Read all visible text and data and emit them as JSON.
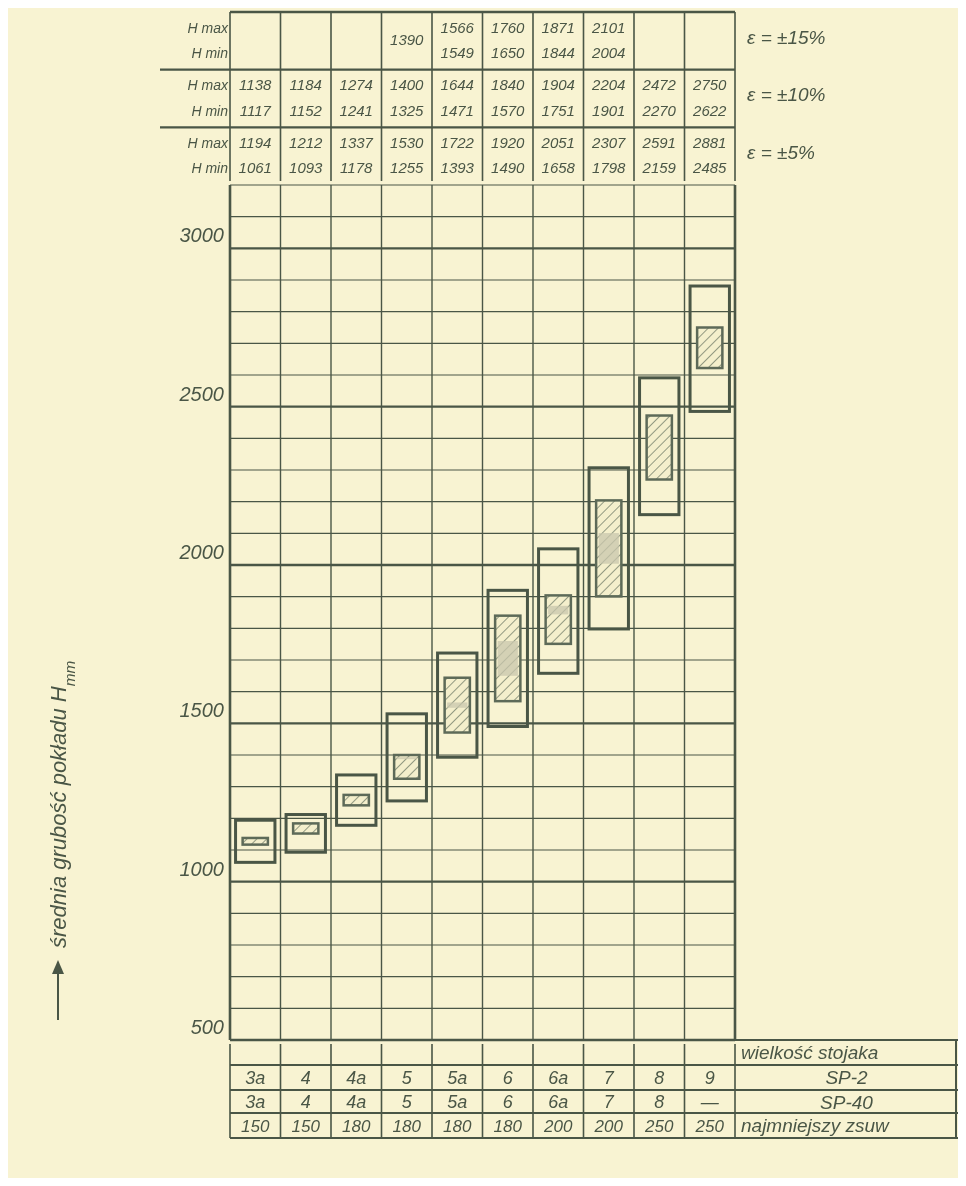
{
  "chart_data": {
    "type": "bar",
    "ylabel": "średnia grubość pokładu    H$_{mm}$",
    "xlabel": "wielkość stojaka",
    "categories": [
      "3a",
      "4",
      "4a",
      "5",
      "5a",
      "6",
      "6a",
      "7",
      "8",
      "9"
    ],
    "ylim": [
      500,
      3200
    ],
    "yticks": [
      500,
      {
        "value": 600,
        "label": null
      },
      {
        "value": 700,
        "label": null
      },
      {
        "value": 800,
        "label": null
      },
      {
        "value": 900,
        "label": null
      },
      1000,
      {
        "value": 1100,
        "label": null
      },
      {
        "value": 1200,
        "label": null
      },
      {
        "value": 1300,
        "label": null
      },
      {
        "value": 1400,
        "label": null
      },
      1500,
      {
        "value": 1600,
        "label": null
      },
      {
        "value": 1700,
        "label": null
      },
      {
        "value": 1800,
        "label": null
      },
      {
        "value": 1900,
        "label": null
      },
      2000,
      {
        "value": 2100,
        "label": null
      },
      {
        "value": 2200,
        "label": null
      },
      {
        "value": 2300,
        "label": null
      },
      {
        "value": 2400,
        "label": null
      },
      2500,
      {
        "value": 2600,
        "label": null
      },
      {
        "value": 2700,
        "label": null
      },
      {
        "value": 2800,
        "label": null
      },
      {
        "value": 2900,
        "label": null
      },
      3000,
      {
        "value": 3100,
        "label": null
      },
      {
        "value": 3200,
        "label": null
      }
    ],
    "grid": true,
    "series": [
      {
        "color": "#4a5646",
        "base": [
          1061,
          1093,
          1178,
          1255,
          1393,
          1490,
          1658,
          1798,
          2159,
          2485
        ],
        "values": [
          133,
          119,
          159,
          275,
          329,
          430,
          393,
          509,
          432,
          396
        ]
      },
      {
        "color": "#5d6a58",
        "base": [
          1117,
          1152,
          1241,
          1325,
          1471,
          1570,
          1751,
          1901,
          2270,
          2622
        ],
        "values": [
          21,
          32,
          33,
          75,
          173,
          270,
          153,
          303,
          202,
          128
        ]
      },
      {
        "color": "#c9c7ae",
        "base": [
          null,
          null,
          null,
          1390,
          1549,
          1650,
          1844,
          2004,
          null,
          null
        ],
        "values": [
          null,
          null,
          null,
          0,
          17,
          110,
          27,
          97,
          null,
          null
        ]
      }
    ],
    "annotations": [
      "H max",
      "H min",
      "SP-2",
      "SP-40",
      "najmniejszy zsuw",
      "ε = ±5%",
      "ε = ±10%",
      "ε = ±15%",
      "3a",
      "4",
      "4a",
      "5",
      "5a",
      "6",
      "6a",
      "7",
      "8",
      "—",
      "150",
      "150",
      "180",
      "180",
      "180",
      "180",
      "200",
      "200",
      "250",
      "250",
      "1194",
      "1061",
      "1212",
      "1093",
      "1337",
      "1178",
      "1530",
      "1255",
      "1722",
      "1393",
      "1920",
      "1490",
      "2051",
      "1658",
      "2307",
      "1798",
      "2591",
      "2159",
      "2881",
      "2485",
      "1138",
      "1117",
      "1184",
      "1152",
      "1274",
      "1241",
      "1400",
      "1325",
      "1644",
      "1471",
      "1840",
      "1570",
      "1904",
      "1751",
      "2204",
      "1901",
      "2472",
      "2270",
      "2750",
      "2622",
      "1390",
      "1566",
      "1549",
      "1760",
      "1650",
      "1871",
      "1844",
      "2101",
      "2004"
    ]
  }
}
